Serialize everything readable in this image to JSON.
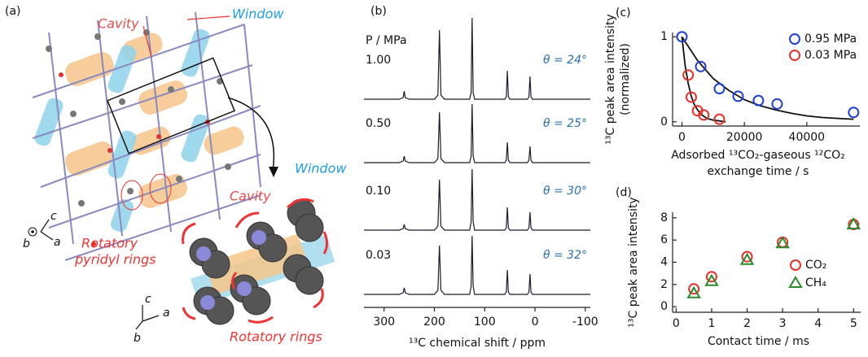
{
  "illustration": {
    "panel_label": "(a)",
    "cavity_top": "Cavity",
    "window_top": "Window",
    "rotatory_pyridyl": [
      "Rotatory",
      "pyridyl rings"
    ],
    "cavity_bottom": "Cavity",
    "window_bottom": "Window",
    "rotatory_rings": "Rotatory rings",
    "axes_top": [
      "c",
      "b",
      "a"
    ],
    "axes_bottom": [
      "c",
      "a",
      "b"
    ]
  },
  "chart_data": [
    {
      "type": "line",
      "panel_label": "(b)",
      "legend_title": "P / MPa",
      "x_label": "¹³C chemical shift / ppm",
      "xlim": [
        340,
        -110
      ],
      "xticks": [
        300,
        200,
        100,
        0,
        -100
      ],
      "x": [
        340,
        270,
        262,
        260,
        258,
        250,
        200,
        193,
        190,
        187,
        180,
        130,
        127,
        125,
        123,
        120,
        60,
        57,
        55,
        53,
        50,
        15,
        12,
        10,
        8,
        5,
        -110
      ],
      "series": [
        {
          "name": "1.00",
          "annotation": "θ = 24°",
          "color": "#1a1a2e",
          "values": [
            0,
            0,
            0.02,
            0.1,
            0.02,
            0,
            0,
            0.05,
            0.85,
            0.05,
            0,
            0,
            0.08,
            1.0,
            0.08,
            0,
            0,
            0.03,
            0.35,
            0.03,
            0,
            0,
            0.03,
            0.28,
            0.03,
            0,
            0
          ]
        },
        {
          "name": "0.50",
          "annotation": "θ = 25°",
          "color": "#1a1a2e",
          "values": [
            0,
            0,
            0.02,
            0.08,
            0.02,
            0,
            0,
            0.05,
            0.62,
            0.05,
            0,
            0,
            0.08,
            0.72,
            0.08,
            0,
            0,
            0.03,
            0.25,
            0.03,
            0,
            0,
            0.03,
            0.2,
            0.03,
            0,
            0
          ]
        },
        {
          "name": "0.10",
          "annotation": "θ = 30°",
          "color": "#1a1a2e",
          "values": [
            0,
            0,
            0.02,
            0.07,
            0.02,
            0,
            0,
            0.05,
            0.62,
            0.05,
            0,
            0,
            0.1,
            0.75,
            0.1,
            0,
            0,
            0.03,
            0.28,
            0.03,
            0,
            0,
            0.03,
            0.22,
            0.03,
            0,
            0
          ]
        },
        {
          "name": "0.03",
          "annotation": "θ = 32°",
          "color": "#1a1a2e",
          "values": [
            0,
            0,
            0.02,
            0.08,
            0.02,
            0,
            0,
            0.05,
            0.6,
            0.05,
            0,
            0,
            0.1,
            0.72,
            0.1,
            0,
            0,
            0.03,
            0.3,
            0.03,
            0,
            0,
            0.03,
            0.25,
            0.03,
            0,
            0
          ]
        }
      ]
    },
    {
      "type": "scatter",
      "panel_label": "(c)",
      "y_label": [
        "¹³C peak area intensity",
        "(normalized)"
      ],
      "x_label": [
        "Adsorbed ¹³CO₂-gaseous ¹²CO₂",
        "exchange time / s"
      ],
      "xlim": [
        -3000,
        57000
      ],
      "xticks": [
        0,
        20000,
        40000
      ],
      "ylim": [
        -0.05,
        1.05
      ],
      "yticks": [
        0,
        1
      ],
      "legend": "upper right",
      "series": [
        {
          "name": "0.95 MPa",
          "color": "#1f3fd6",
          "x": [
            0,
            6000,
            12000,
            18000,
            24500,
            30500,
            55000
          ],
          "values": [
            1.0,
            0.65,
            0.39,
            0.3,
            0.25,
            0.21,
            0.11
          ]
        },
        {
          "name": "0.03 MPa",
          "color": "#e8302a",
          "x": [
            2000,
            3000,
            5000,
            7000,
            12000
          ],
          "values": [
            0.55,
            0.29,
            0.13,
            0.08,
            0.03
          ]
        }
      ],
      "fits": [
        {
          "color": "#111111",
          "x": [
            0,
            5000,
            10000,
            15000,
            20000,
            25000,
            30000,
            35000,
            40000,
            45000,
            50000,
            55000
          ],
          "values": [
            1.0,
            0.72,
            0.51,
            0.37,
            0.26,
            0.19,
            0.14,
            0.1,
            0.07,
            0.05,
            0.04,
            0.03
          ]
        },
        {
          "color": "#111111",
          "x": [
            0,
            1000,
            2000,
            3000,
            4000,
            5000,
            6000,
            8000,
            10000,
            12000,
            14000
          ],
          "values": [
            1.0,
            0.67,
            0.45,
            0.3,
            0.2,
            0.14,
            0.09,
            0.04,
            0.02,
            0.01,
            0.0
          ]
        }
      ]
    },
    {
      "type": "scatter",
      "panel_label": "(d)",
      "y_label": [
        "¹³C peak area intensity"
      ],
      "x_label": [
        "Contact time / ms"
      ],
      "xlim": [
        -0.1,
        5.2
      ],
      "xticks": [
        0,
        1,
        2,
        3,
        4,
        5
      ],
      "ylim": [
        -0.5,
        8.5
      ],
      "yticks": [
        0,
        2,
        4,
        6,
        8
      ],
      "legend": "lower right",
      "series": [
        {
          "name": "CO₂",
          "color": "#e8302a",
          "marker": "circle",
          "x": [
            0.5,
            1,
            2,
            3,
            5
          ],
          "values": [
            1.6,
            2.7,
            4.5,
            5.8,
            7.4
          ]
        },
        {
          "name": "CH₄",
          "color": "#2a8a2a",
          "marker": "triangle",
          "x": [
            0.5,
            1,
            2,
            3,
            5
          ],
          "values": [
            1.2,
            2.3,
            4.2,
            5.7,
            7.4
          ]
        }
      ]
    }
  ]
}
